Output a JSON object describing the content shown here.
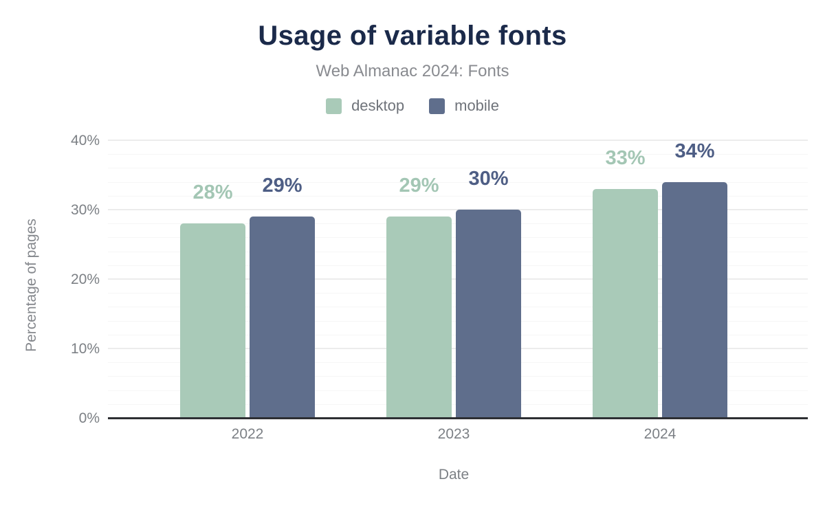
{
  "page": {
    "title": "Usage of variable fonts",
    "subtitle": "Web Almanac 2024: Fonts"
  },
  "chart_data": {
    "type": "bar",
    "title": "Usage of variable fonts",
    "subtitle": "Web Almanac 2024: Fonts",
    "categories": [
      "2022",
      "2023",
      "2024"
    ],
    "series": [
      {
        "name": "desktop",
        "values": [
          28,
          29,
          33
        ],
        "labels": [
          "28%",
          "29%",
          "33%"
        ],
        "color": "#a9cab8",
        "label_color": "#a3c6b4"
      },
      {
        "name": "mobile",
        "values": [
          29,
          30,
          34
        ],
        "labels": [
          "29%",
          "30%",
          "34%"
        ],
        "color": "#5f6e8c",
        "label_color": "#4e5e85"
      }
    ],
    "xlabel": "Date",
    "ylabel": "Percentage of pages",
    "ylim": [
      0,
      40
    ],
    "yticks": [
      {
        "value": 0,
        "label": "0%"
      },
      {
        "value": 10,
        "label": "10%"
      },
      {
        "value": 20,
        "label": "20%"
      },
      {
        "value": 30,
        "label": "30%"
      },
      {
        "value": 40,
        "label": "40%"
      }
    ],
    "grid": {
      "minor_every": 2,
      "major_every": 10,
      "minor_color": "#f6f6f6",
      "major_color": "#ececec"
    },
    "legend_position": "top",
    "colors": {
      "title": "#1b2a4a",
      "subtitle": "#898b90",
      "axis_text": "#7c8085",
      "axis_line": "#2d2f33"
    }
  }
}
